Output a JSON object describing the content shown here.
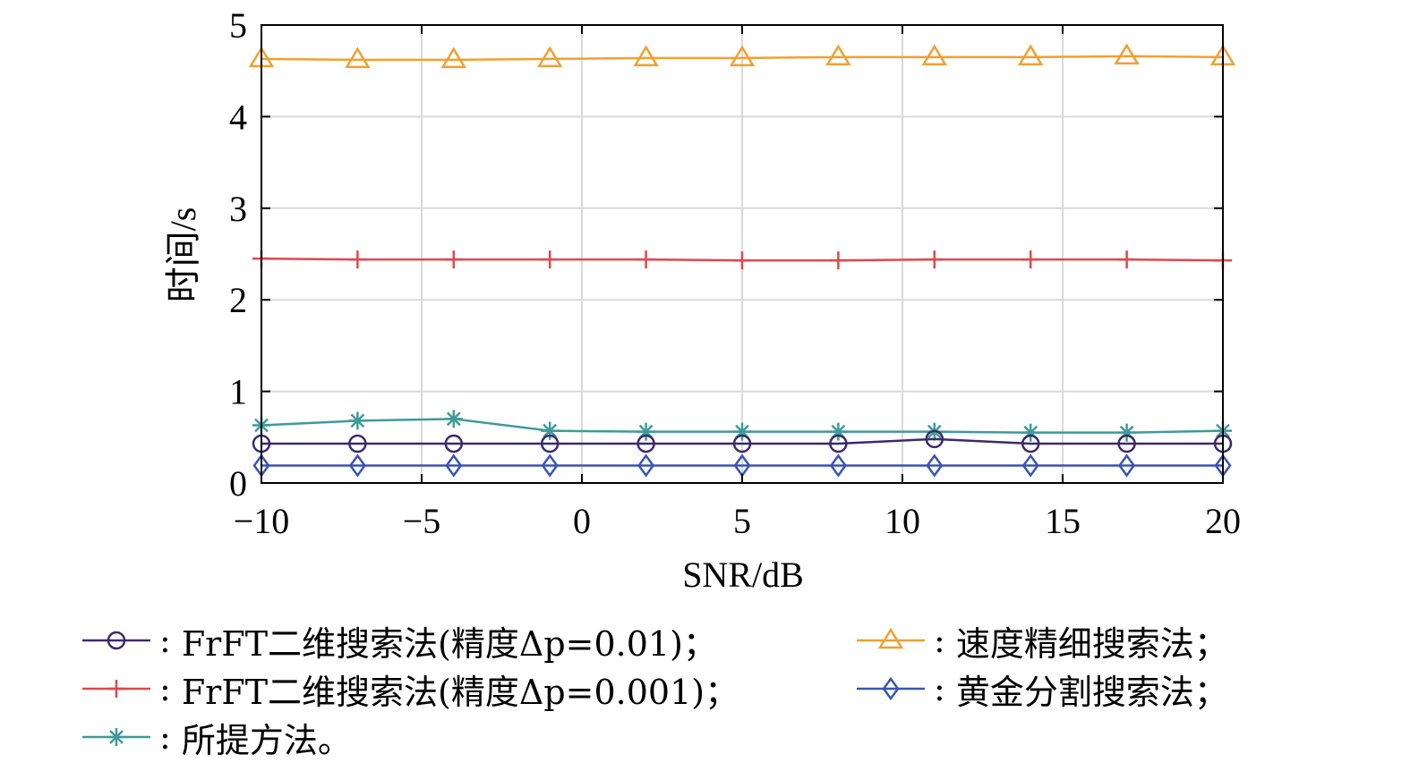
{
  "chart_data": {
    "type": "line",
    "xlabel": "SNR/dB",
    "ylabel": "时间/s",
    "xlim": [
      -10,
      20
    ],
    "ylim": [
      0,
      5
    ],
    "x_ticks": [
      "−10",
      "−5",
      "0",
      "5",
      "10",
      "15",
      "20"
    ],
    "y_ticks": [
      "0",
      "1",
      "2",
      "3",
      "4",
      "5"
    ],
    "x": [
      -10,
      -7,
      -4,
      -1,
      2,
      5,
      8,
      11,
      14,
      17,
      20
    ],
    "grid": true,
    "legend_position": "bottom",
    "series": [
      {
        "id": "frft001",
        "color": "#3b2a6b",
        "marker": "circle",
        "values": [
          0.43,
          0.43,
          0.43,
          0.43,
          0.43,
          0.43,
          0.43,
          0.48,
          0.43,
          0.43,
          0.43
        ]
      },
      {
        "id": "frft0001",
        "color": "#e0474c",
        "marker": "plus",
        "values": [
          2.45,
          2.44,
          2.44,
          2.44,
          2.44,
          2.43,
          2.43,
          2.44,
          2.44,
          2.44,
          2.43
        ]
      },
      {
        "id": "proposed",
        "color": "#3f9a9a",
        "marker": "asterisk",
        "values": [
          0.63,
          0.68,
          0.7,
          0.57,
          0.56,
          0.56,
          0.56,
          0.56,
          0.55,
          0.55,
          0.57
        ]
      },
      {
        "id": "speed",
        "color": "#f0a030",
        "marker": "triangle",
        "values": [
          4.63,
          4.62,
          4.62,
          4.63,
          4.64,
          4.64,
          4.65,
          4.65,
          4.65,
          4.66,
          4.65
        ]
      },
      {
        "id": "golden",
        "color": "#3a55b0",
        "marker": "diamond",
        "values": [
          0.19,
          0.19,
          0.19,
          0.19,
          0.19,
          0.19,
          0.19,
          0.19,
          0.19,
          0.19,
          0.19
        ]
      }
    ]
  },
  "legend": {
    "frft001": "FrFT二维搜索法(精度Δp=0.01)；",
    "frft0001": "FrFT二维搜索法(精度Δp=0.001)；",
    "proposed": "所提方法。",
    "speed": "速度精细搜索法；",
    "golden": "黄金分割搜索法；",
    "colon": ":"
  }
}
